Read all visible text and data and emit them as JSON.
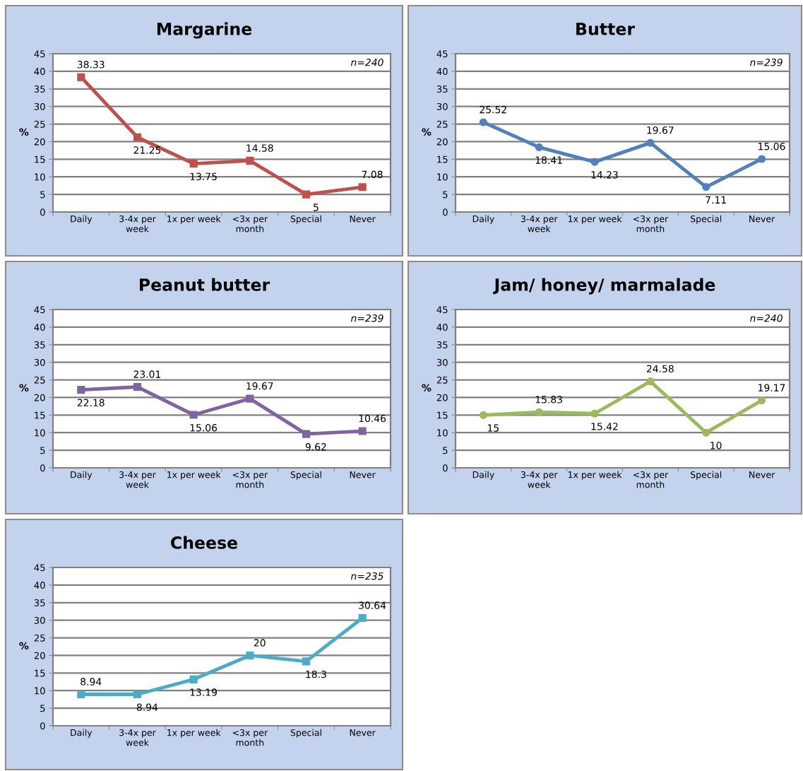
{
  "chart_data": [
    {
      "type": "line",
      "title": "Margarine",
      "ylabel": "%",
      "categories": [
        "Daily",
        "3-4x per\nweek",
        "1x per week",
        "<3x per\nmonth",
        "Special",
        "Never"
      ],
      "series": [
        {
          "color": "#c0504d",
          "values": [
            38.33,
            21.25,
            13.75,
            14.58,
            5,
            7.08
          ]
        }
      ],
      "ylim": [
        0,
        45
      ],
      "yticks": [
        0,
        5,
        10,
        15,
        20,
        25,
        30,
        35,
        40,
        45
      ],
      "grid": "y",
      "marker": "square",
      "data_labels": true,
      "annotations": [
        "n=240"
      ]
    },
    {
      "type": "line",
      "title": "Butter",
      "ylabel": "%",
      "categories": [
        "Daily",
        "3-4x per\nweek",
        "1x per week",
        "<3x per\nmonth",
        "Special",
        "Never"
      ],
      "series": [
        {
          "color": "#4f81bd",
          "values": [
            25.52,
            18.41,
            14.23,
            19.67,
            7.11,
            15.06
          ]
        }
      ],
      "ylim": [
        0,
        45
      ],
      "yticks": [
        0,
        5,
        10,
        15,
        20,
        25,
        30,
        35,
        40,
        45
      ],
      "grid": "y",
      "marker": "circle",
      "data_labels": true,
      "annotations": [
        "n=239"
      ]
    },
    {
      "type": "line",
      "title": "Peanut butter",
      "ylabel": "%",
      "categories": [
        "Daily",
        "3-4x per\nweek",
        "1x per week",
        "<3x per\nmonth",
        "Special",
        "Never"
      ],
      "series": [
        {
          "color": "#8064a2",
          "values": [
            22.18,
            23.01,
            15.06,
            19.67,
            9.62,
            10.46
          ]
        }
      ],
      "ylim": [
        0,
        45
      ],
      "yticks": [
        0,
        5,
        10,
        15,
        20,
        25,
        30,
        35,
        40,
        45
      ],
      "grid": "y",
      "marker": "square",
      "data_labels": true,
      "annotations": [
        "n=239"
      ]
    },
    {
      "type": "line",
      "title": "Jam/ honey/ marmalade",
      "ylabel": "%",
      "categories": [
        "Daily",
        "3-4x per\nweek",
        "1x per week",
        "<3x per\nmonth",
        "Special",
        "Never"
      ],
      "series": [
        {
          "color": "#9bbb59",
          "values": [
            15,
            15.83,
            15.42,
            24.58,
            10,
            19.17
          ]
        }
      ],
      "ylim": [
        0,
        45
      ],
      "yticks": [
        0,
        5,
        10,
        15,
        20,
        25,
        30,
        35,
        40,
        45
      ],
      "grid": "y",
      "marker": "circle",
      "data_labels": true,
      "annotations": [
        "n=240"
      ]
    },
    {
      "type": "line",
      "title": "Cheese",
      "ylabel": "%",
      "categories": [
        "Daily",
        "3-4x per\nweek",
        "1x per week",
        "<3x per\nmonth",
        "Special",
        "Never"
      ],
      "series": [
        {
          "color": "#4bacc6",
          "values": [
            8.94,
            8.94,
            13.19,
            20,
            18.3,
            30.64
          ]
        }
      ],
      "ylim": [
        0,
        45
      ],
      "yticks": [
        0,
        5,
        10,
        15,
        20,
        25,
        30,
        35,
        40,
        45
      ],
      "grid": "y",
      "marker": "square",
      "data_labels": true,
      "annotations": [
        "n=235"
      ]
    }
  ]
}
